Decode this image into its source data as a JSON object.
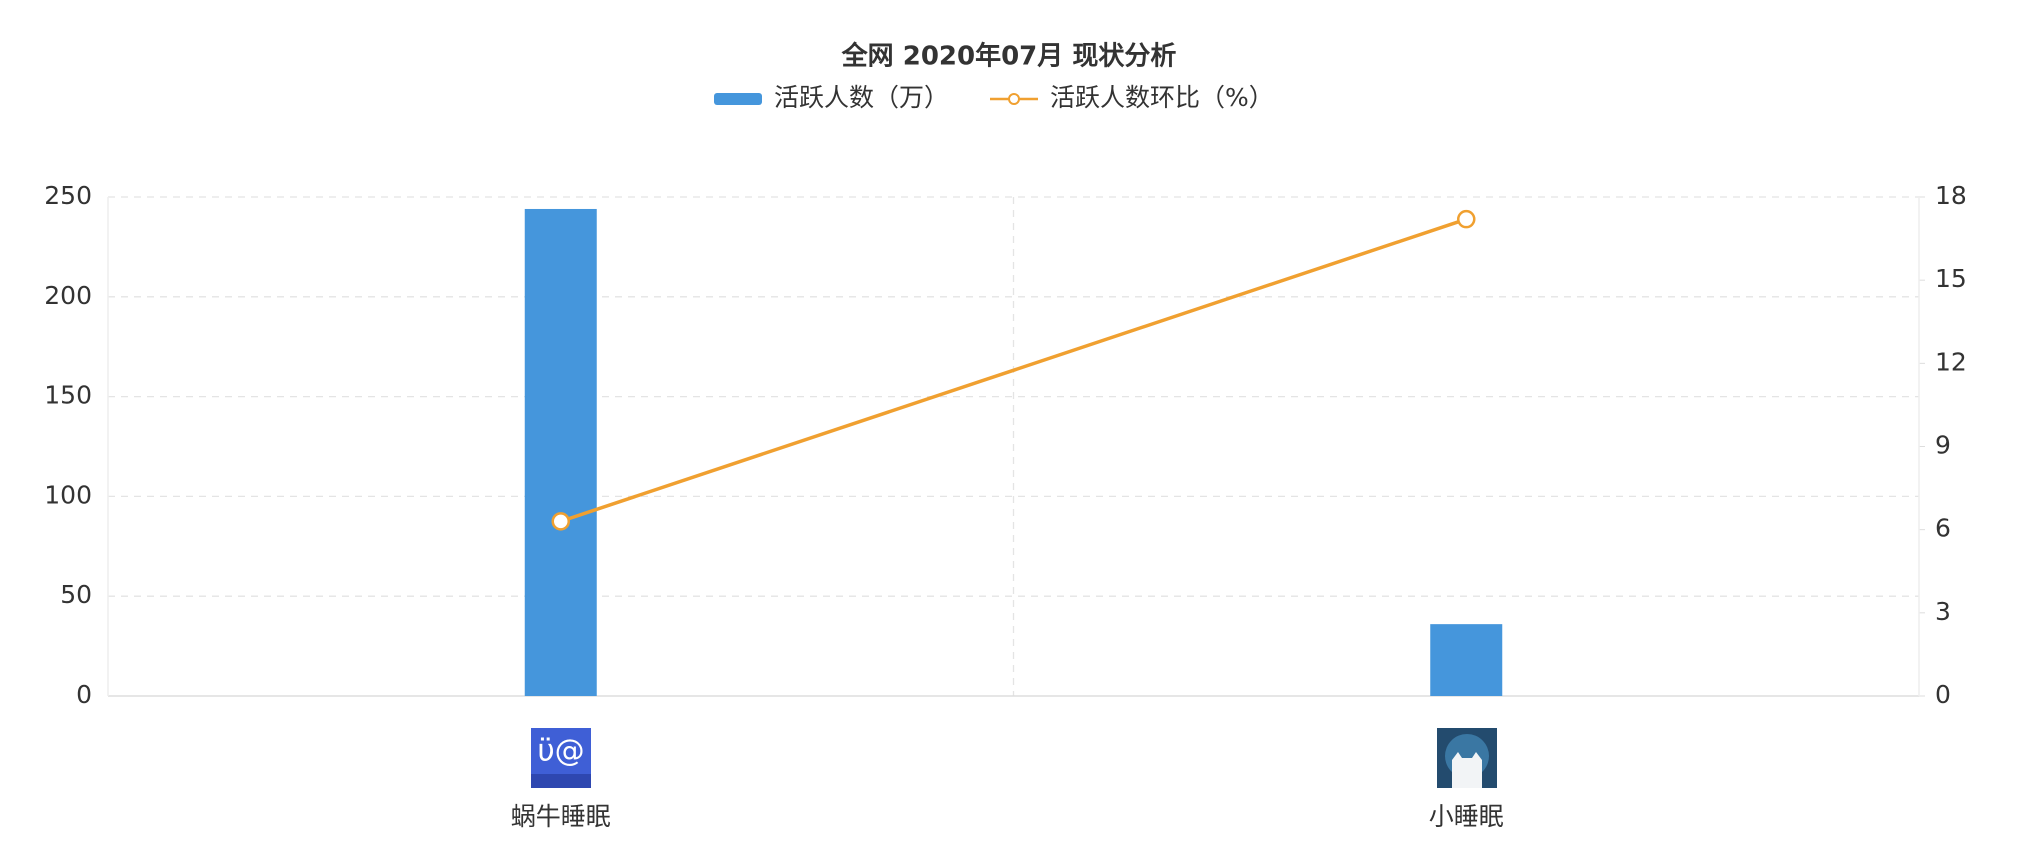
{
  "chart_data": {
    "type": "bar",
    "title": "全网 2020年07月 现状分析",
    "categories": [
      "蜗牛睡眠",
      "小睡眠"
    ],
    "series": [
      {
        "name": "活跃人数（万）",
        "color": "#4596dc",
        "values": [
          244,
          36
        ]
      },
      {
        "name": "活跃人数环比（%）",
        "color": "#f0a030",
        "values": [
          6.3,
          17.2
        ],
        "axis": "y2",
        "type": "line"
      }
    ],
    "ylim": [
      0,
      250
    ],
    "yticks": [
      0,
      50,
      100,
      150,
      200,
      250
    ],
    "y2lim": [
      0,
      18
    ],
    "y2ticks": [
      0,
      3,
      6,
      9,
      12,
      15,
      18
    ],
    "grid": true,
    "legend": "top"
  }
}
